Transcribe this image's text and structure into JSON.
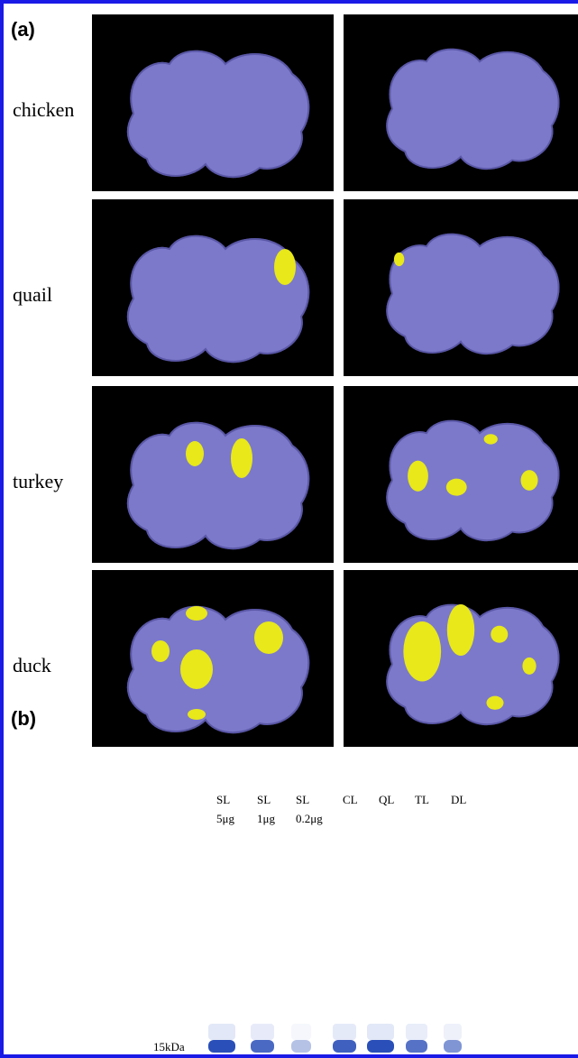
{
  "panel_a": {
    "label": "(a)",
    "rows": [
      "chicken",
      "quail",
      "turkey",
      "duck"
    ]
  },
  "panel_b": {
    "label": "(b)",
    "lanes": [
      {
        "name": "SL",
        "amount": "5μg"
      },
      {
        "name": "SL",
        "amount": "1μg"
      },
      {
        "name": "SL",
        "amount": "0.2μg"
      },
      {
        "name": "CL"
      },
      {
        "name": "QL"
      },
      {
        "name": "TL"
      },
      {
        "name": "DL"
      }
    ],
    "marker": "15kDa"
  }
}
